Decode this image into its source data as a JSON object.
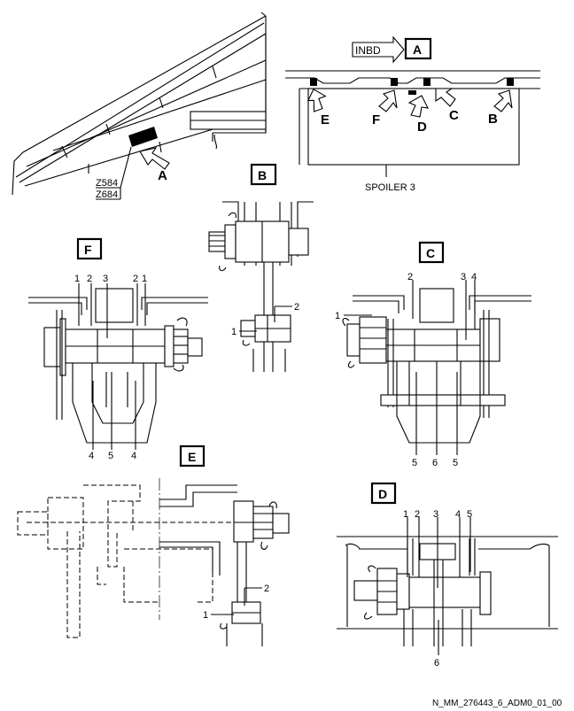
{
  "overview": {
    "zone_upper": "Z584",
    "zone_lower": "Z684",
    "view_arrow": "A"
  },
  "view_a": {
    "title": "A",
    "inbd": "INBD",
    "spoiler": "SPOILER 3",
    "arrows": [
      "E",
      "F",
      "D",
      "C",
      "B"
    ]
  },
  "view_b": {
    "title": "B",
    "callouts": [
      "1",
      "2"
    ]
  },
  "view_c": {
    "title": "C",
    "callouts": [
      "2",
      "3",
      "4",
      "1",
      "5",
      "6",
      "5"
    ]
  },
  "view_d": {
    "title": "D",
    "callouts": [
      "1",
      "2",
      "3",
      "4",
      "5",
      "6"
    ]
  },
  "view_e": {
    "title": "E",
    "callouts": [
      "2",
      "1"
    ]
  },
  "view_f": {
    "title": "F",
    "callouts": [
      "1",
      "2",
      "3",
      "2",
      "1",
      "4",
      "5",
      "4"
    ]
  },
  "footer": {
    "ref": "N_MM_276443_6_ADM0_01_00"
  }
}
